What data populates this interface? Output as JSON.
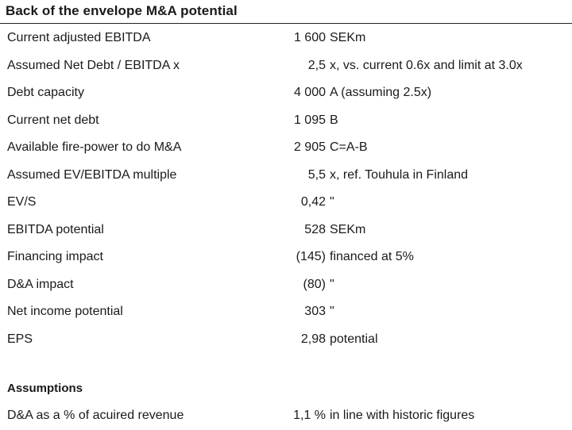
{
  "title": "Back of the envelope M&A potential",
  "rows": [
    {
      "label": "Current adjusted EBITDA",
      "value": "1 600",
      "note": "SEKm"
    },
    {
      "label": "Assumed Net Debt / EBITDA x",
      "value": "2,5",
      "note": "x, vs. current 0.6x and limit at 3.0x"
    },
    {
      "label": "Debt capacity",
      "value": "4 000",
      "note": "A (assuming 2.5x)"
    },
    {
      "label": "Current net debt",
      "value": "1 095",
      "note": "B"
    },
    {
      "label": "Available fire-power to do M&A",
      "value": "2 905",
      "note": "C=A-B"
    },
    {
      "label": "Assumed EV/EBITDA multiple",
      "value": "5,5",
      "note": "x, ref. Touhula in Finland"
    },
    {
      "label": "EV/S",
      "value": "0,42",
      "note": "\""
    },
    {
      "label": "EBITDA potential",
      "value": "528",
      "note": "SEKm"
    },
    {
      "label": "Financing impact",
      "value": "(145)",
      "note": "financed at 5%"
    },
    {
      "label": "D&A impact",
      "value": "(80)",
      "note": "\""
    },
    {
      "label": "Net income potential",
      "value": "303",
      "note": "\""
    },
    {
      "label": "EPS",
      "value": "2,98",
      "note": "potential"
    }
  ],
  "assumptions": {
    "title": "Assumptions",
    "rows": [
      {
        "label": "D&A as a % of acuired revenue",
        "value": "1,1 %",
        "note": "in line with historic figures"
      }
    ]
  }
}
